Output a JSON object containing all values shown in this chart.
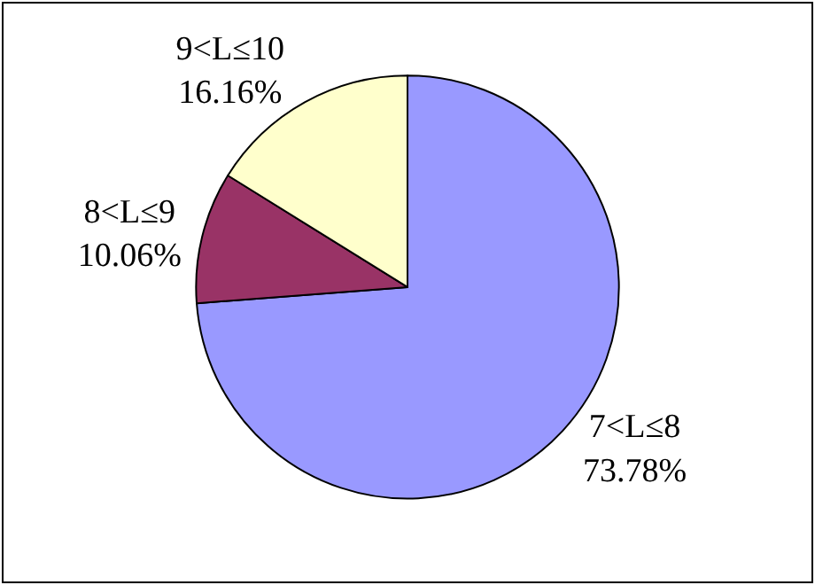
{
  "chart_data": {
    "type": "pie",
    "categories": [
      "7<L≤8",
      "8<L≤9",
      "9<L≤10"
    ],
    "values": [
      73.78,
      10.06,
      16.16
    ],
    "colors": [
      "#9999ff",
      "#993366",
      "#ffffcc"
    ],
    "value_labels": [
      "73.78%",
      "10.06%",
      "16.16%"
    ],
    "legend": false
  }
}
